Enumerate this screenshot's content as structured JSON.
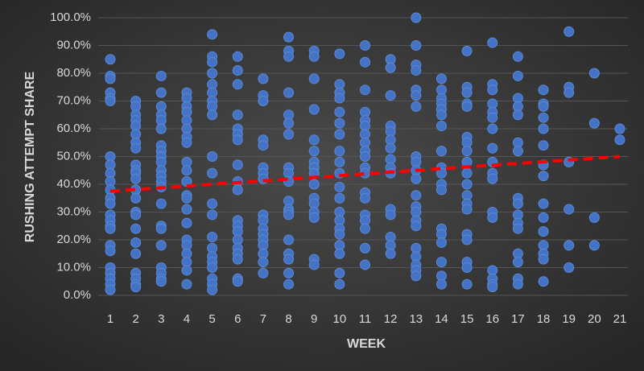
{
  "chart_data": {
    "type": "scatter",
    "x_label": "WEEK",
    "y_label": "RUSHING ATTEMPT SHARE",
    "xlim": [
      1,
      21
    ],
    "xticks": [
      1,
      2,
      3,
      4,
      5,
      6,
      7,
      8,
      9,
      10,
      11,
      12,
      13,
      14,
      15,
      16,
      17,
      18,
      19,
      20,
      21
    ],
    "ylim": [
      0,
      100
    ],
    "yticks": [
      {
        "value": 0,
        "label": "0.0%"
      },
      {
        "value": 10,
        "label": "10.0%"
      },
      {
        "value": 20,
        "label": "20.0%"
      },
      {
        "value": 30,
        "label": "30.0%"
      },
      {
        "value": 40,
        "label": "40.0%"
      },
      {
        "value": 50,
        "label": "50.0%"
      },
      {
        "value": 60,
        "label": "60.0%"
      },
      {
        "value": 70,
        "label": "70.0%"
      },
      {
        "value": 80,
        "label": "80.0%"
      },
      {
        "value": 90,
        "label": "90.0%"
      },
      {
        "value": 100,
        "label": "100.0%"
      }
    ],
    "grid": true,
    "series": [
      {
        "color": "#4472c4",
        "x": [
          1,
          1,
          1,
          1,
          1,
          1,
          1,
          1,
          1,
          1,
          1,
          1,
          1,
          1,
          1,
          1,
          1,
          1,
          1,
          1,
          1,
          1,
          1,
          1,
          2,
          2,
          2,
          2,
          2,
          2,
          2,
          2,
          2,
          2,
          2,
          2,
          2,
          2,
          2,
          2,
          2,
          2,
          2,
          2,
          2,
          2,
          2,
          3,
          3,
          3,
          3,
          3,
          3,
          3,
          3,
          3,
          3,
          3,
          3,
          3,
          3,
          3,
          3,
          3,
          3,
          3,
          3,
          3,
          3,
          4,
          4,
          4,
          4,
          4,
          4,
          4,
          4,
          4,
          4,
          4,
          4,
          4,
          4,
          4,
          4,
          4,
          4,
          4,
          4,
          4,
          5,
          5,
          5,
          5,
          5,
          5,
          5,
          5,
          5,
          5,
          5,
          5,
          5,
          5,
          5,
          5,
          5,
          5,
          5,
          5,
          5,
          6,
          6,
          6,
          6,
          6,
          6,
          6,
          6,
          6,
          6,
          6,
          6,
          6,
          6,
          6,
          6,
          6,
          6,
          6,
          7,
          7,
          7,
          7,
          7,
          7,
          7,
          7,
          7,
          7,
          7,
          7,
          7,
          7,
          7,
          7,
          7,
          8,
          8,
          8,
          8,
          8,
          8,
          8,
          8,
          8,
          8,
          8,
          8,
          8,
          8,
          8,
          8,
          8,
          8,
          8,
          9,
          9,
          9,
          9,
          9,
          9,
          9,
          9,
          9,
          9,
          9,
          9,
          9,
          9,
          9,
          9,
          10,
          10,
          10,
          10,
          10,
          10,
          10,
          10,
          10,
          10,
          10,
          10,
          10,
          10,
          10,
          10,
          10,
          10,
          10,
          10,
          11,
          11,
          11,
          11,
          11,
          11,
          11,
          11,
          11,
          11,
          11,
          11,
          11,
          11,
          11,
          11,
          11,
          11,
          11,
          12,
          12,
          12,
          12,
          12,
          12,
          12,
          12,
          12,
          12,
          12,
          12,
          12,
          12,
          12,
          13,
          13,
          13,
          13,
          13,
          13,
          13,
          13,
          13,
          13,
          13,
          13,
          13,
          13,
          13,
          13,
          13,
          13,
          13,
          13,
          13,
          14,
          14,
          14,
          14,
          14,
          14,
          14,
          14,
          14,
          14,
          14,
          14,
          14,
          14,
          14,
          14,
          14,
          14,
          15,
          15,
          15,
          15,
          15,
          15,
          15,
          15,
          15,
          15,
          15,
          15,
          15,
          15,
          15,
          15,
          15,
          15,
          15,
          16,
          16,
          16,
          16,
          16,
          16,
          16,
          16,
          16,
          16,
          16,
          16,
          16,
          16,
          16,
          16,
          16,
          17,
          17,
          17,
          17,
          17,
          17,
          17,
          17,
          17,
          17,
          17,
          17,
          17,
          17,
          17,
          17,
          18,
          18,
          18,
          18,
          18,
          18,
          18,
          18,
          18,
          18,
          18,
          18,
          18,
          18,
          18,
          19,
          19,
          19,
          19,
          19,
          19,
          19,
          20,
          20,
          20,
          20,
          21,
          21
        ],
        "values": [
          85,
          79,
          78,
          73,
          71,
          70,
          50,
          47,
          44,
          41,
          38,
          35,
          33,
          29,
          27,
          25,
          24,
          18,
          16,
          10,
          8,
          6,
          4,
          2,
          70,
          68,
          65,
          63,
          61,
          58,
          55,
          53,
          47,
          45,
          44,
          42,
          38,
          35,
          30,
          29,
          24,
          19,
          15,
          8,
          6,
          4,
          3,
          79,
          73,
          68,
          65,
          63,
          60,
          54,
          52,
          50,
          48,
          45,
          43,
          41,
          39,
          33,
          25,
          24,
          18,
          10,
          8,
          6,
          5,
          73,
          71,
          68,
          66,
          63,
          60,
          57,
          55,
          48,
          45,
          41,
          36,
          35,
          31,
          26,
          20,
          18,
          15,
          12,
          9,
          4,
          94,
          86,
          84,
          80,
          76,
          73,
          70,
          68,
          65,
          50,
          44,
          33,
          29,
          21,
          17,
          14,
          12,
          10,
          6,
          4,
          2,
          86,
          81,
          76,
          65,
          60,
          58,
          56,
          47,
          41,
          38,
          27,
          25,
          23,
          20,
          17,
          15,
          13,
          6,
          5,
          78,
          72,
          70,
          56,
          54,
          46,
          44,
          42,
          29,
          27,
          24,
          22,
          20,
          18,
          15,
          12,
          8,
          93,
          88,
          86,
          73,
          65,
          62,
          58,
          46,
          44,
          41,
          34,
          31,
          30,
          29,
          20,
          15,
          13,
          8,
          4,
          88,
          86,
          78,
          67,
          56,
          52,
          48,
          46,
          44,
          40,
          35,
          33,
          30,
          28,
          13,
          11,
          87,
          76,
          73,
          71,
          66,
          62,
          58,
          52,
          48,
          44,
          39,
          35,
          30,
          27,
          24,
          22,
          18,
          15,
          8,
          4,
          90,
          84,
          74,
          66,
          63,
          61,
          58,
          55,
          52,
          50,
          46,
          44,
          37,
          35,
          29,
          27,
          24,
          17,
          11,
          85,
          82,
          72,
          61,
          59,
          56,
          53,
          49,
          46,
          44,
          31,
          29,
          21,
          18,
          15,
          100,
          90,
          83,
          81,
          74,
          72,
          68,
          50,
          48,
          45,
          42,
          36,
          32,
          30,
          27,
          25,
          17,
          14,
          11,
          9,
          7,
          78,
          74,
          71,
          69,
          67,
          65,
          61,
          52,
          46,
          44,
          40,
          38,
          24,
          22,
          19,
          12,
          7,
          4,
          88,
          75,
          73,
          69,
          68,
          57,
          55,
          52,
          48,
          44,
          40,
          36,
          33,
          31,
          22,
          20,
          12,
          10,
          4,
          91,
          76,
          74,
          69,
          66,
          64,
          60,
          53,
          48,
          44,
          42,
          30,
          28,
          9,
          6,
          4,
          3,
          86,
          79,
          71,
          68,
          65,
          55,
          52,
          35,
          33,
          29,
          26,
          24,
          15,
          12,
          6,
          4,
          74,
          69,
          68,
          64,
          60,
          54,
          47,
          43,
          33,
          28,
          23,
          18,
          15,
          13,
          5,
          95,
          75,
          73,
          48,
          31,
          18,
          10,
          80,
          62,
          28,
          18,
          60,
          56
        ]
      }
    ],
    "trendline": {
      "x": [
        1,
        21
      ],
      "values": [
        37.5,
        50
      ],
      "color": "#ff0000"
    }
  }
}
